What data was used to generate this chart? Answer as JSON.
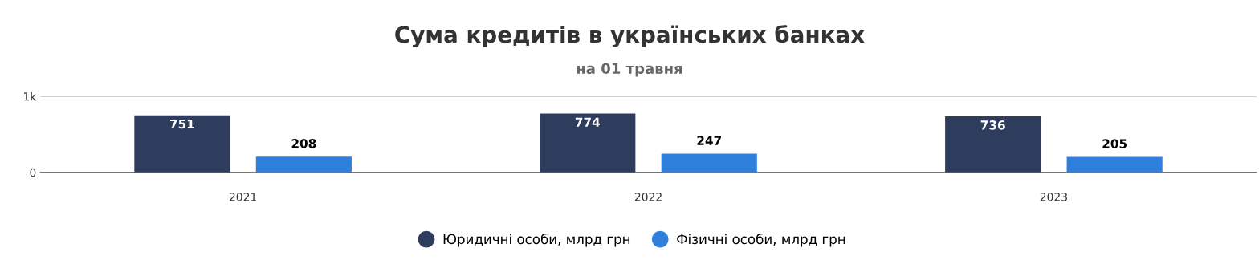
{
  "chart_data": {
    "type": "bar",
    "title": "Сума кредитів в українських банках",
    "subtitle": "на 01 травня",
    "categories": [
      "2021",
      "2022",
      "2023"
    ],
    "series": [
      {
        "name": "Юридичні особи, млрд грн",
        "color": "#2e3d5e",
        "values": [
          751,
          774,
          736
        ]
      },
      {
        "name": "Фізичні особи, млрд грн",
        "color": "#2e80dc",
        "values": [
          208,
          247,
          205
        ]
      }
    ],
    "ylim": [
      0,
      1000
    ],
    "yticks": [
      0,
      {
        "value": 1000,
        "label": "1k"
      }
    ],
    "grid": "y",
    "legend": "bottom",
    "marker": "circle",
    "data_labels": true
  }
}
